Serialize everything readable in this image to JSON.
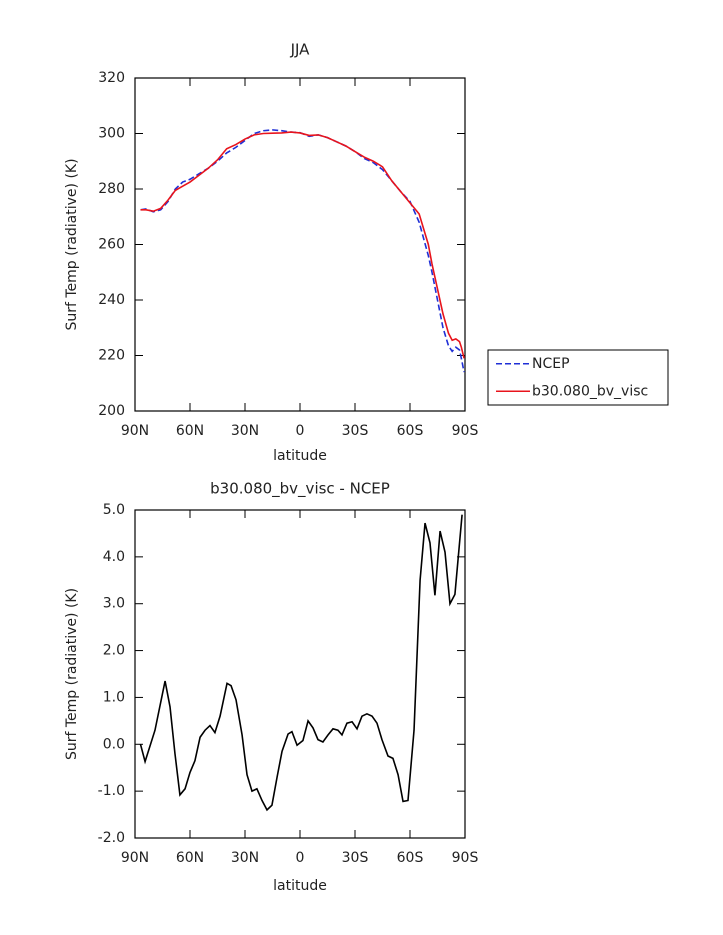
{
  "chart_data": [
    {
      "type": "line",
      "title": "JJA",
      "xlabel": "latitude",
      "ylabel": "Surf Temp (radiative) (K)",
      "x": [
        87,
        84,
        80,
        76,
        72,
        68,
        64,
        60,
        55,
        50,
        45,
        40,
        35,
        30,
        25,
        20,
        15,
        10,
        5,
        0,
        -5,
        -10,
        -15,
        -20,
        -25,
        -30,
        -35,
        -40,
        -45,
        -50,
        -55,
        -60,
        -65,
        -70,
        -72,
        -75,
        -78,
        -81,
        -83,
        -85,
        -87,
        -88,
        -89.5
      ],
      "series": [
        {
          "name": "NCEP",
          "color": "#1f2fd6",
          "style": "dashed",
          "values": [
            272.5,
            272.8,
            271.8,
            272.5,
            275.5,
            280,
            282.5,
            283.5,
            285.5,
            287.5,
            290,
            293,
            295,
            297.5,
            300,
            301,
            301.3,
            301,
            300.5,
            300.3,
            299,
            299.5,
            298.5,
            297,
            295.5,
            293.5,
            291,
            289.5,
            287,
            283,
            279,
            275.5,
            268,
            256,
            250,
            240,
            230,
            223.5,
            221.5,
            223,
            222,
            219,
            214
          ]
        },
        {
          "name": "b30.080_bv_visc",
          "color": "#e8141c",
          "style": "solid",
          "values": [
            272.5,
            272.5,
            272,
            273,
            276,
            279.5,
            281,
            282.5,
            285,
            287.5,
            290.5,
            294.5,
            296,
            298,
            299.5,
            300,
            300.1,
            300.2,
            300.5,
            300.2,
            299.3,
            299.5,
            298.5,
            297,
            295.5,
            293.5,
            291.5,
            290,
            288,
            283,
            279,
            275,
            271,
            260,
            253,
            244,
            235,
            228,
            225.5,
            226,
            225,
            223,
            219
          ]
        }
      ],
      "xlim": [
        90,
        -90
      ],
      "xticks": [
        {
          "value": 90,
          "label": "90N"
        },
        {
          "value": 60,
          "label": "60N"
        },
        {
          "value": 30,
          "label": "30N"
        },
        0,
        {
          "value": -30,
          "label": "30S"
        },
        {
          "value": -60,
          "label": "60S"
        },
        {
          "value": -90,
          "label": "90S"
        }
      ],
      "ylim": [
        200,
        320
      ],
      "yticks": [
        200,
        220,
        240,
        260,
        280,
        300,
        320
      ],
      "legend": "right"
    },
    {
      "type": "line",
      "title": "b30.080_bv_visc - NCEP",
      "xlabel": "latitude",
      "ylabel": "Surf Temp (radiative) (K)",
      "x": [
        87,
        84.5,
        79.1,
        73.6,
        70.9,
        68.2,
        65.5,
        62.7,
        60,
        57.3,
        54.5,
        51.8,
        49.1,
        46.4,
        43.6,
        39.8,
        37.6,
        34.9,
        31.6,
        28.9,
        26.2,
        23.5,
        20.7,
        18,
        15.3,
        12.5,
        9.8,
        6.5,
        4.4,
        1.6,
        -1.6,
        -4.4,
        -7.1,
        -9.8,
        -12.5,
        -15.3,
        -18,
        -20.7,
        -22.9,
        -25.6,
        -28.4,
        -31.1,
        -33.8,
        -36.5,
        -39.3,
        -42,
        -44.7,
        -48,
        -50.7,
        -53.5,
        -56.2,
        -58.9,
        -62.2,
        -65.5,
        -68.2,
        -70.9,
        -73.6,
        -76.4,
        -79.1,
        -81.8,
        -84.5,
        -88.4
      ],
      "series": [
        {
          "name": "b30.080_bv_visc - NCEP",
          "color": "#000000",
          "style": "solid",
          "values": [
            0.0,
            -0.37,
            0.3,
            1.35,
            0.8,
            -0.2,
            -1.08,
            -0.95,
            -0.6,
            -0.35,
            0.15,
            0.3,
            0.4,
            0.25,
            0.6,
            1.3,
            1.25,
            0.95,
            0.2,
            -0.65,
            -1.0,
            -0.95,
            -1.2,
            -1.4,
            -1.3,
            -0.7,
            -0.15,
            0.22,
            0.27,
            -0.02,
            0.08,
            0.5,
            0.35,
            0.1,
            0.05,
            0.2,
            0.33,
            0.3,
            0.2,
            0.45,
            0.48,
            0.33,
            0.6,
            0.65,
            0.6,
            0.45,
            0.1,
            -0.25,
            -0.3,
            -0.65,
            -1.22,
            -1.2,
            0.3,
            3.5,
            4.72,
            4.3,
            3.18,
            4.55,
            4.1,
            3.0,
            3.2,
            4.9
          ]
        }
      ],
      "xlim": [
        90,
        -90
      ],
      "xticks": [
        {
          "value": 90,
          "label": "90N"
        },
        {
          "value": 60,
          "label": "60N"
        },
        {
          "value": 30,
          "label": "30N"
        },
        0,
        {
          "value": -30,
          "label": "30S"
        },
        {
          "value": -60,
          "label": "60S"
        },
        {
          "value": -90,
          "label": "90S"
        }
      ],
      "ylim": [
        -2,
        5
      ],
      "yticks": [
        {
          "value": -2,
          "label": "-2.0"
        },
        {
          "value": -1,
          "label": "-1.0"
        },
        {
          "value": 0,
          "label": "0.0"
        },
        {
          "value": 1,
          "label": "1.0"
        },
        {
          "value": 2,
          "label": "2.0"
        },
        {
          "value": 3,
          "label": "3.0"
        },
        {
          "value": 4,
          "label": "4.0"
        },
        {
          "value": 5,
          "label": "5.0"
        }
      ]
    }
  ]
}
